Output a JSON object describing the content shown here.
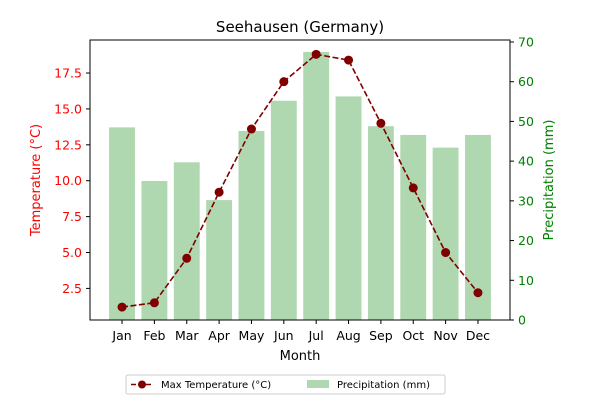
{
  "chart_data": {
    "type": "bar+line",
    "title": "Seehausen (Germany)",
    "xlabel": "Month",
    "categories": [
      "Jan",
      "Feb",
      "Mar",
      "Apr",
      "May",
      "Jun",
      "Jul",
      "Aug",
      "Sep",
      "Oct",
      "Nov",
      "Dec"
    ],
    "left_axis": {
      "label": "Temperature (°C)",
      "color": "#ff0000",
      "ylim": [
        0.3,
        19.8
      ],
      "ticks": [
        2.5,
        5.0,
        7.5,
        10.0,
        12.5,
        15.0,
        17.5
      ],
      "tick_labels": [
        "2.5",
        "5.0",
        "7.5",
        "10.0",
        "12.5",
        "15.0",
        "17.5"
      ]
    },
    "right_axis": {
      "label": "Precipitation (mm)",
      "color": "#008000",
      "ylim": [
        0,
        70.5
      ],
      "ticks": [
        0,
        10,
        20,
        30,
        40,
        50,
        60,
        70
      ],
      "tick_labels": [
        "0",
        "10",
        "20",
        "30",
        "40",
        "50",
        "60",
        "70"
      ]
    },
    "series": [
      {
        "name": "Max Temperature (°C)",
        "type": "line",
        "axis": "left",
        "color": "#800000",
        "values": [
          1.2,
          1.5,
          4.6,
          9.2,
          13.6,
          16.9,
          18.8,
          18.4,
          14.0,
          9.5,
          5.0,
          2.2
        ]
      },
      {
        "name": "Precipitation (mm)",
        "type": "bar",
        "axis": "right",
        "color": "#b0d8b0",
        "values": [
          48.5,
          35.0,
          39.7,
          30.2,
          47.6,
          55.2,
          67.5,
          56.3,
          48.8,
          46.6,
          43.4,
          46.6
        ]
      }
    ],
    "legend_position": "bottom-center",
    "grid": false
  }
}
